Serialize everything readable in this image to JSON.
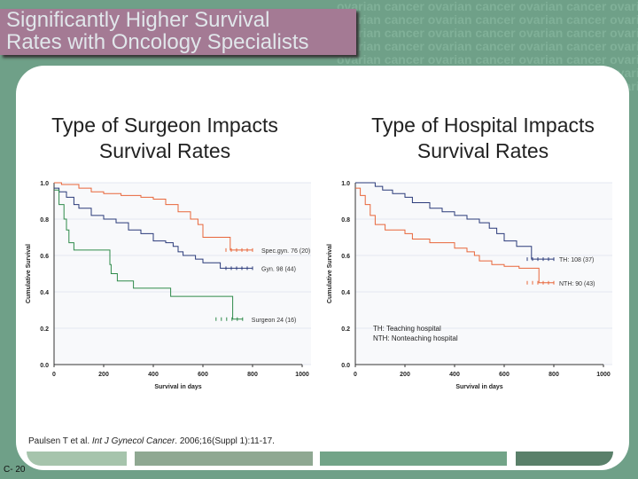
{
  "watermark": "ovarian cancer ovarian cancer ovarian cancer ovarian cancer ovarian cancer ovarian cancer ovarian cancer",
  "title": {
    "line1": "Significantly Higher Survival",
    "line2": "Rates with Oncology Specialists"
  },
  "citation": {
    "authors": "Paulsen T et al. ",
    "journal": "Int J Gynecol Cancer",
    "rest": ". 2006;16(Suppl 1):11-17."
  },
  "slide_number": "C- 20",
  "colors": {
    "background": "#6fa088",
    "title_bg": "#a47a94",
    "orange": "#e8663a",
    "blue": "#2a3a7a",
    "green": "#2e8a4a"
  },
  "chart_data": [
    {
      "type": "line",
      "title": "Type of Surgeon Impacts Survival Rates",
      "xlabel": "Survival in days",
      "ylabel": "Cumulative Survival",
      "xlim": [
        0,
        1000
      ],
      "ylim": [
        0,
        1
      ],
      "xticks": [
        "0",
        "200",
        "400",
        "600",
        "800",
        "1000"
      ],
      "yticks": [
        "0.0",
        "0.2",
        "0.4",
        "0.6",
        "0.8",
        "1.0"
      ],
      "series": [
        {
          "name": "Spec.gyn. 76 (20)",
          "color": "#e8663a",
          "x": [
            0,
            30,
            100,
            150,
            200,
            270,
            350,
            400,
            450,
            500,
            550,
            580,
            600,
            710,
            800
          ],
          "y": [
            1.0,
            0.99,
            0.97,
            0.95,
            0.94,
            0.93,
            0.92,
            0.91,
            0.88,
            0.84,
            0.8,
            0.77,
            0.7,
            0.63,
            0.63
          ]
        },
        {
          "name": "Gyn. 98 (44)",
          "color": "#2a3a7a",
          "x": [
            0,
            20,
            50,
            80,
            100,
            150,
            200,
            250,
            300,
            350,
            400,
            450,
            480,
            500,
            520,
            570,
            600,
            670,
            800
          ],
          "y": [
            0.97,
            0.95,
            0.92,
            0.88,
            0.86,
            0.82,
            0.8,
            0.78,
            0.74,
            0.72,
            0.68,
            0.67,
            0.65,
            0.62,
            0.6,
            0.58,
            0.56,
            0.53,
            0.53
          ]
        },
        {
          "name": "Surgeon 24 (16)",
          "color": "#2e8a4a",
          "x": [
            0,
            20,
            40,
            50,
            60,
            80,
            215,
            225,
            230,
            255,
            320,
            470,
            720,
            760
          ],
          "y": [
            0.96,
            0.88,
            0.8,
            0.74,
            0.67,
            0.63,
            0.63,
            0.55,
            0.5,
            0.46,
            0.42,
            0.375,
            0.25,
            0.25
          ]
        }
      ]
    },
    {
      "type": "line",
      "title": "Type of Hospital Impacts Survival Rates",
      "xlabel": "Survival in days",
      "ylabel": "Cumulative Survival",
      "xlim": [
        0,
        1000
      ],
      "ylim": [
        0,
        1
      ],
      "xticks": [
        "0",
        "200",
        "400",
        "600",
        "800",
        "1000"
      ],
      "yticks": [
        "0.0",
        "0.2",
        "0.4",
        "0.6",
        "0.8",
        "1.0"
      ],
      "annotations": [
        "TH: Teaching hospital",
        "NTH: Nonteaching hospital"
      ],
      "series": [
        {
          "name": "TH: 108 (37)",
          "color": "#2a3a7a",
          "x": [
            0,
            40,
            80,
            110,
            150,
            200,
            230,
            300,
            350,
            400,
            450,
            500,
            540,
            570,
            600,
            650,
            710,
            800
          ],
          "y": [
            1.0,
            1.0,
            0.98,
            0.96,
            0.94,
            0.92,
            0.89,
            0.86,
            0.84,
            0.82,
            0.8,
            0.78,
            0.75,
            0.72,
            0.68,
            0.65,
            0.58,
            0.58
          ]
        },
        {
          "name": "NTH: 90 (43)",
          "color": "#e8663a",
          "x": [
            0,
            20,
            40,
            60,
            80,
            120,
            200,
            230,
            300,
            400,
            450,
            480,
            500,
            550,
            600,
            660,
            740,
            800
          ],
          "y": [
            0.97,
            0.93,
            0.88,
            0.82,
            0.77,
            0.74,
            0.72,
            0.69,
            0.67,
            0.64,
            0.62,
            0.6,
            0.57,
            0.55,
            0.54,
            0.53,
            0.45,
            0.45
          ]
        }
      ]
    }
  ]
}
